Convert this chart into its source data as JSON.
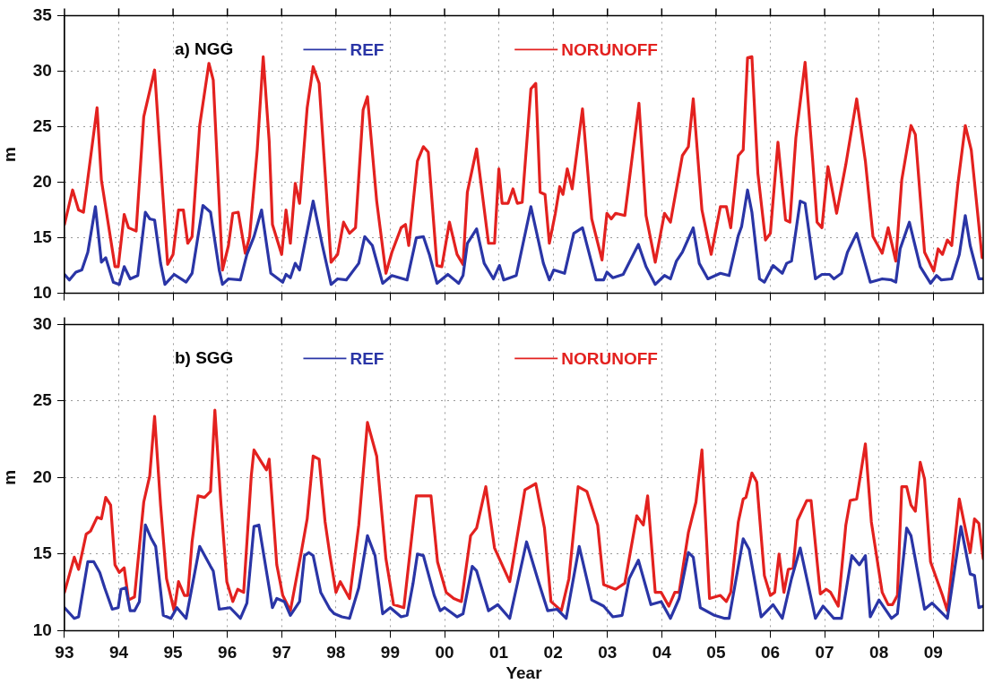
{
  "chart_data": [
    {
      "type": "line",
      "title": "a) NGG",
      "ylabel": "m",
      "xlim": [
        1993,
        2009.92
      ],
      "ylim": [
        10,
        35
      ],
      "yticks": [
        10,
        15,
        20,
        25,
        30,
        35
      ],
      "xticks": [
        {
          "value": 1993,
          "label": null
        },
        {
          "value": 1994,
          "label": null
        },
        {
          "value": 1995,
          "label": null
        },
        {
          "value": 1996,
          "label": null
        },
        {
          "value": 1997,
          "label": null
        },
        {
          "value": 1998,
          "label": null
        },
        {
          "value": 1999,
          "label": null
        },
        {
          "value": 2000,
          "label": null
        },
        {
          "value": 2001,
          "label": null
        },
        {
          "value": 2002,
          "label": null
        },
        {
          "value": 2003,
          "label": null
        },
        {
          "value": 2004,
          "label": null
        },
        {
          "value": 2005,
          "label": null
        },
        {
          "value": 2006,
          "label": null
        },
        {
          "value": 2007,
          "label": null
        },
        {
          "value": 2008,
          "label": null
        },
        {
          "value": 2009,
          "label": null
        }
      ],
      "tick_labels": "y",
      "grid": true,
      "legend": "top",
      "marker": "none",
      "line_style": "solid",
      "series": [
        {
          "name": "REF",
          "color": "#2a35a6",
          "x": [
            1993.0,
            1993.09,
            1993.21,
            1993.32,
            1993.43,
            1993.57,
            1993.68,
            1993.76,
            1993.9,
            1994.01,
            1994.1,
            1994.21,
            1994.35,
            1994.49,
            1994.57,
            1994.66,
            1994.77,
            1994.85,
            1995.02,
            1995.24,
            1995.35,
            1995.55,
            1995.69,
            1995.85,
            1995.91,
            1996.02,
            1996.24,
            1996.36,
            1996.49,
            1996.63,
            1996.8,
            1997.02,
            1997.08,
            1997.16,
            1997.25,
            1997.33,
            1997.58,
            1997.75,
            1997.91,
            1998.03,
            1998.19,
            1998.42,
            1998.53,
            1998.67,
            1998.86,
            1999.03,
            1999.31,
            1999.48,
            1999.61,
            1999.72,
            1999.86,
            2000.06,
            2000.26,
            2000.34,
            2000.42,
            2000.59,
            2000.73,
            2000.9,
            2001.01,
            2001.09,
            2001.32,
            2001.59,
            2001.82,
            2001.93,
            2002.01,
            2002.21,
            2002.38,
            2002.54,
            2002.79,
            2002.93,
            2002.99,
            2003.1,
            2003.29,
            2003.57,
            2003.71,
            2003.88,
            2004.05,
            2004.16,
            2004.27,
            2004.38,
            2004.58,
            2004.69,
            2004.85,
            2005.08,
            2005.24,
            2005.41,
            2005.47,
            2005.58,
            2005.66,
            2005.8,
            2005.89,
            2006.05,
            2006.22,
            2006.3,
            2006.39,
            2006.55,
            2006.64,
            2006.83,
            2006.95,
            2007.09,
            2007.17,
            2007.31,
            2007.42,
            2007.59,
            2007.84,
            2008.06,
            2008.23,
            2008.31,
            2008.39,
            2008.56,
            2008.76,
            2008.95,
            2009.06,
            2009.15,
            2009.34,
            2009.48,
            2009.59,
            2009.68,
            2009.84,
            2009.92
          ],
          "values": [
            11.7,
            11.2,
            11.9,
            12.1,
            13.7,
            17.8,
            12.8,
            13.2,
            11.0,
            10.8,
            12.4,
            11.3,
            11.6,
            17.3,
            16.7,
            16.6,
            12.7,
            10.8,
            11.7,
            11.0,
            11.8,
            17.9,
            17.3,
            12.1,
            10.8,
            11.3,
            11.2,
            13.5,
            15.1,
            17.5,
            11.8,
            11.0,
            11.7,
            11.4,
            12.7,
            12.1,
            18.3,
            14.3,
            10.8,
            11.3,
            11.2,
            12.7,
            15.1,
            14.3,
            10.9,
            11.6,
            11.2,
            15.0,
            15.1,
            13.5,
            10.9,
            11.7,
            10.9,
            11.6,
            14.5,
            15.8,
            12.7,
            11.3,
            12.5,
            11.2,
            11.6,
            17.8,
            12.7,
            11.2,
            12.1,
            11.8,
            15.4,
            15.9,
            11.2,
            11.2,
            11.9,
            11.4,
            11.7,
            14.4,
            12.4,
            10.8,
            11.6,
            11.3,
            12.9,
            13.7,
            15.9,
            12.7,
            11.3,
            11.8,
            11.6,
            15.2,
            16.0,
            19.3,
            17.3,
            11.3,
            11.0,
            12.5,
            11.8,
            12.7,
            12.9,
            18.3,
            18.1,
            11.3,
            11.7,
            11.7,
            11.3,
            11.8,
            13.7,
            15.4,
            11.0,
            11.3,
            11.2,
            11.0,
            14.0,
            16.4,
            12.4,
            10.9,
            11.6,
            11.2,
            11.3,
            13.5,
            17.0,
            14.3,
            11.3,
            11.3
          ]
        },
        {
          "name": "NORUNOFF",
          "color": "#e3211f",
          "x": [
            1993.0,
            1993.15,
            1993.26,
            1993.35,
            1993.6,
            1993.68,
            1993.93,
            1993.99,
            1994.1,
            1994.18,
            1994.32,
            1994.46,
            1994.66,
            1994.8,
            1994.9,
            1995.0,
            1995.1,
            1995.19,
            1995.27,
            1995.35,
            1995.49,
            1995.66,
            1995.74,
            1995.91,
            1996.02,
            1996.1,
            1996.2,
            1996.33,
            1996.41,
            1996.55,
            1996.66,
            1996.77,
            1996.83,
            1997.0,
            1997.08,
            1997.16,
            1997.25,
            1997.33,
            1997.47,
            1997.58,
            1997.69,
            1997.91,
            1998.03,
            1998.14,
            1998.25,
            1998.36,
            1998.5,
            1998.58,
            1998.75,
            1998.92,
            1999.03,
            1999.2,
            1999.28,
            1999.34,
            1999.5,
            1999.61,
            1999.7,
            1999.86,
            1999.95,
            2000.09,
            2000.23,
            2000.34,
            2000.42,
            2000.59,
            2000.81,
            2000.92,
            2001.0,
            2001.06,
            2001.17,
            2001.26,
            2001.34,
            2001.43,
            2001.59,
            2001.68,
            2001.76,
            2001.85,
            2001.93,
            2002.04,
            2002.12,
            2002.18,
            2002.26,
            2002.35,
            2002.54,
            2002.71,
            2002.9,
            2002.99,
            2003.07,
            2003.15,
            2003.32,
            2003.58,
            2003.71,
            2003.88,
            2004.05,
            2004.16,
            2004.38,
            2004.49,
            2004.58,
            2004.74,
            2004.91,
            2005.08,
            2005.19,
            2005.27,
            2005.41,
            2005.5,
            2005.58,
            2005.66,
            2005.77,
            2005.91,
            2006.0,
            2006.14,
            2006.28,
            2006.36,
            2006.47,
            2006.64,
            2006.78,
            2006.86,
            2006.95,
            2007.06,
            2007.22,
            2007.39,
            2007.59,
            2007.75,
            2007.89,
            2008.06,
            2008.17,
            2008.31,
            2008.42,
            2008.59,
            2008.67,
            2008.84,
            2009.01,
            2009.09,
            2009.17,
            2009.26,
            2009.34,
            2009.45,
            2009.59,
            2009.7,
            2009.9
          ],
          "values": [
            16.2,
            19.3,
            17.5,
            17.3,
            26.7,
            20.2,
            12.4,
            12.4,
            17.1,
            15.9,
            15.6,
            25.9,
            30.1,
            19.7,
            12.6,
            13.5,
            17.5,
            17.5,
            14.5,
            15.1,
            25.1,
            30.7,
            29.2,
            12.1,
            14.3,
            17.2,
            17.3,
            13.6,
            15.1,
            22.9,
            31.3,
            23.7,
            16.2,
            13.5,
            17.5,
            14.5,
            19.9,
            18.1,
            26.7,
            30.4,
            28.9,
            12.8,
            13.5,
            16.4,
            15.4,
            15.9,
            26.5,
            27.7,
            18.3,
            11.8,
            13.7,
            15.9,
            16.2,
            14.3,
            21.9,
            23.2,
            22.7,
            12.5,
            12.4,
            16.4,
            13.5,
            12.6,
            19.1,
            23.0,
            14.5,
            14.5,
            21.2,
            18.1,
            18.1,
            19.4,
            18.1,
            18.2,
            28.4,
            28.9,
            19.1,
            18.9,
            14.5,
            17.2,
            19.6,
            18.9,
            21.2,
            19.4,
            26.6,
            16.7,
            13.0,
            17.2,
            16.7,
            17.2,
            17.0,
            27.1,
            17.0,
            12.8,
            17.2,
            16.4,
            22.4,
            23.2,
            27.5,
            17.5,
            13.5,
            17.8,
            17.8,
            15.9,
            22.4,
            22.9,
            31.2,
            31.3,
            20.8,
            14.8,
            15.4,
            23.6,
            16.6,
            16.4,
            24.0,
            30.8,
            21.9,
            16.4,
            15.9,
            21.4,
            17.2,
            21.6,
            27.5,
            21.9,
            15.1,
            13.6,
            15.9,
            12.9,
            20.2,
            25.1,
            24.3,
            13.7,
            12.0,
            14.0,
            13.5,
            14.8,
            14.3,
            19.7,
            25.1,
            22.9,
            13.2
          ]
        }
      ]
    },
    {
      "type": "line",
      "title": "b) SGG",
      "xlabel": "Year",
      "ylabel": "m",
      "xlim": [
        1993,
        2009.92
      ],
      "ylim": [
        10,
        30
      ],
      "yticks": [
        10,
        15,
        20,
        25,
        30
      ],
      "xticks": [
        {
          "value": 1993,
          "label": "93"
        },
        {
          "value": 1994,
          "label": "94"
        },
        {
          "value": 1995,
          "label": "95"
        },
        {
          "value": 1996,
          "label": "96"
        },
        {
          "value": 1997,
          "label": "97"
        },
        {
          "value": 1998,
          "label": "98"
        },
        {
          "value": 1999,
          "label": "99"
        },
        {
          "value": 2000,
          "label": "00"
        },
        {
          "value": 2001,
          "label": "01"
        },
        {
          "value": 2002,
          "label": "02"
        },
        {
          "value": 2003,
          "label": "03"
        },
        {
          "value": 2004,
          "label": "04"
        },
        {
          "value": 2005,
          "label": "05"
        },
        {
          "value": 2006,
          "label": "06"
        },
        {
          "value": 2007,
          "label": "07"
        },
        {
          "value": 2008,
          "label": "08"
        },
        {
          "value": 2009,
          "label": "09"
        }
      ],
      "grid": true,
      "legend": "top",
      "marker": "none",
      "line_style": "solid",
      "series": [
        {
          "name": "REF",
          "color": "#2a35a6",
          "x": [
            1993.0,
            1993.18,
            1993.26,
            1993.43,
            1993.54,
            1993.65,
            1993.74,
            1993.88,
            1993.99,
            1994.04,
            1994.13,
            1994.21,
            1994.29,
            1994.38,
            1994.49,
            1994.6,
            1994.68,
            1994.82,
            1994.96,
            1995.07,
            1995.24,
            1995.49,
            1995.69,
            1995.74,
            1995.85,
            1996.05,
            1996.24,
            1996.36,
            1996.49,
            1996.58,
            1996.83,
            1996.91,
            1997.05,
            1997.16,
            1997.33,
            1997.42,
            1997.5,
            1997.58,
            1997.72,
            1997.89,
            1997.97,
            1998.11,
            1998.25,
            1998.42,
            1998.58,
            1998.72,
            1998.86,
            1999.0,
            1999.2,
            1999.31,
            1999.42,
            1999.5,
            1999.61,
            1999.81,
            1999.92,
            2000.0,
            2000.23,
            2000.34,
            2000.51,
            2000.59,
            2000.81,
            2000.98,
            2001.2,
            2001.51,
            2001.73,
            2001.9,
            2002.07,
            2002.24,
            2002.48,
            2002.71,
            2002.93,
            2003.1,
            2003.27,
            2003.4,
            2003.57,
            2003.8,
            2003.99,
            2004.16,
            2004.32,
            2004.49,
            2004.58,
            2004.71,
            2004.97,
            2005.16,
            2005.24,
            2005.5,
            2005.61,
            2005.83,
            2006.05,
            2006.22,
            2006.39,
            2006.55,
            2006.83,
            2006.97,
            2007.17,
            2007.31,
            2007.5,
            2007.64,
            2007.75,
            2007.84,
            2008.0,
            2008.23,
            2008.34,
            2008.51,
            2008.59,
            2008.84,
            2008.98,
            2009.26,
            2009.51,
            2009.68,
            2009.76,
            2009.84,
            2009.92
          ],
          "values": [
            11.5,
            10.8,
            10.9,
            14.5,
            14.5,
            13.8,
            12.8,
            11.4,
            11.5,
            12.7,
            12.8,
            11.3,
            11.3,
            11.9,
            16.9,
            16.0,
            15.5,
            11.0,
            10.8,
            11.5,
            10.8,
            15.5,
            14.2,
            13.9,
            11.4,
            11.5,
            10.8,
            11.8,
            16.8,
            16.9,
            11.5,
            12.1,
            11.9,
            11.0,
            11.9,
            14.9,
            15.1,
            14.9,
            12.5,
            11.4,
            11.1,
            10.9,
            10.8,
            12.8,
            16.2,
            14.9,
            11.1,
            11.5,
            10.9,
            11.0,
            13.1,
            15.0,
            14.9,
            12.3,
            11.3,
            11.5,
            10.9,
            11.1,
            14.2,
            13.9,
            11.3,
            11.7,
            10.8,
            15.8,
            13.2,
            11.3,
            11.4,
            10.8,
            15.5,
            12.0,
            11.6,
            10.9,
            11.0,
            13.4,
            14.6,
            11.7,
            11.9,
            10.8,
            12.1,
            15.1,
            14.8,
            11.5,
            11.0,
            10.8,
            10.8,
            16.0,
            15.3,
            10.9,
            11.7,
            10.8,
            13.4,
            15.4,
            10.8,
            11.6,
            10.8,
            10.8,
            14.9,
            14.3,
            14.9,
            10.9,
            12.0,
            10.8,
            11.1,
            16.7,
            16.2,
            11.4,
            11.8,
            10.8,
            16.8,
            13.7,
            13.6,
            11.5,
            11.6
          ]
        },
        {
          "name": "NORUNOFF",
          "color": "#e3211f",
          "x": [
            1993.0,
            1993.18,
            1993.26,
            1993.4,
            1993.48,
            1993.6,
            1993.68,
            1993.76,
            1993.85,
            1993.93,
            1994.01,
            1994.1,
            1994.18,
            1994.29,
            1994.46,
            1994.57,
            1994.66,
            1994.77,
            1994.88,
            1995.02,
            1995.1,
            1995.21,
            1995.27,
            1995.35,
            1995.46,
            1995.58,
            1995.69,
            1995.77,
            1995.88,
            1995.99,
            1996.1,
            1996.19,
            1996.3,
            1996.44,
            1996.49,
            1996.63,
            1996.72,
            1996.77,
            1996.91,
            1997.02,
            1997.16,
            1997.36,
            1997.47,
            1997.58,
            1997.69,
            1997.8,
            1997.89,
            1998.0,
            1998.08,
            1998.25,
            1998.42,
            1998.58,
            1998.75,
            1998.92,
            1999.06,
            1999.25,
            1999.48,
            1999.59,
            1999.75,
            1999.87,
            2000.03,
            2000.17,
            2000.31,
            2000.48,
            2000.59,
            2000.76,
            2000.92,
            2001.2,
            2001.48,
            2001.68,
            2001.84,
            2001.96,
            2002.15,
            2002.29,
            2002.46,
            2002.62,
            2002.82,
            2002.93,
            2003.15,
            2003.32,
            2003.54,
            2003.66,
            2003.74,
            2003.88,
            2003.99,
            2004.13,
            2004.24,
            2004.32,
            2004.49,
            2004.63,
            2004.74,
            2004.88,
            2005.08,
            2005.19,
            2005.27,
            2005.41,
            2005.5,
            2005.55,
            2005.66,
            2005.75,
            2005.89,
            2006.0,
            2006.08,
            2006.16,
            2006.25,
            2006.33,
            2006.42,
            2006.5,
            2006.67,
            2006.75,
            2006.92,
            2007.03,
            2007.11,
            2007.25,
            2007.39,
            2007.47,
            2007.59,
            2007.75,
            2007.86,
            2008.06,
            2008.17,
            2008.25,
            2008.34,
            2008.42,
            2008.51,
            2008.59,
            2008.67,
            2008.76,
            2008.84,
            2008.95,
            2009.17,
            2009.26,
            2009.48,
            2009.68,
            2009.76,
            2009.84,
            2009.92
          ],
          "values": [
            12.5,
            14.8,
            14.0,
            16.3,
            16.5,
            17.4,
            17.3,
            18.7,
            18.2,
            14.3,
            13.8,
            14.1,
            12.0,
            12.2,
            18.4,
            20.1,
            24.0,
            18.2,
            13.4,
            11.3,
            13.2,
            12.3,
            12.3,
            15.8,
            18.8,
            18.7,
            19.1,
            24.4,
            18.4,
            13.2,
            11.9,
            12.7,
            12.5,
            20.1,
            21.8,
            21.0,
            20.5,
            21.2,
            14.3,
            12.3,
            11.3,
            15.1,
            17.3,
            21.4,
            21.2,
            17.1,
            14.9,
            12.5,
            13.2,
            12.1,
            16.9,
            23.6,
            21.4,
            14.7,
            11.7,
            11.5,
            18.8,
            18.8,
            18.8,
            14.5,
            12.5,
            12.1,
            11.9,
            16.2,
            16.7,
            19.4,
            15.4,
            13.2,
            19.2,
            19.6,
            16.7,
            11.9,
            11.3,
            13.4,
            19.4,
            19.1,
            16.9,
            13.0,
            12.7,
            13.1,
            17.5,
            16.9,
            18.8,
            12.5,
            12.5,
            11.6,
            12.5,
            12.5,
            16.4,
            18.4,
            21.8,
            12.1,
            12.3,
            11.9,
            12.5,
            17.1,
            18.6,
            18.7,
            20.3,
            19.7,
            13.6,
            12.3,
            12.5,
            15.0,
            12.5,
            14.0,
            14.1,
            17.2,
            18.5,
            18.5,
            12.4,
            12.7,
            12.5,
            11.6,
            16.9,
            18.5,
            18.6,
            22.2,
            17.1,
            12.5,
            11.7,
            11.7,
            12.3,
            19.4,
            19.4,
            18.2,
            17.8,
            21.0,
            19.9,
            14.5,
            12.3,
            11.3,
            18.6,
            15.1,
            17.3,
            17.0,
            14.7
          ]
        }
      ]
    }
  ]
}
